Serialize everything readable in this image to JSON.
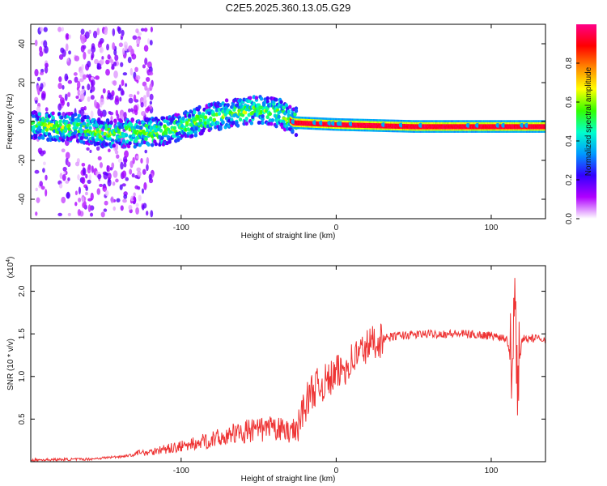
{
  "chart_data": [
    {
      "type": "heatmap",
      "title": "C2E5.2025.360.13.05.G29",
      "xlabel": "Height of straight line (km)",
      "ylabel": "Frequency (Hz)",
      "xlim": [
        -197,
        135
      ],
      "ylim": [
        -50,
        50
      ],
      "xticks": [
        -100,
        0,
        100
      ],
      "yticks": [
        -40,
        -20,
        0,
        20,
        40
      ],
      "colorbar": {
        "label": "Normalized spectral amplitude",
        "ticks": [
          "0.0",
          "0.2",
          "0.4",
          "0.6",
          "0.8"
        ],
        "tick_values": [
          0.0,
          0.2,
          0.4,
          0.6,
          0.8
        ],
        "range": [
          0,
          1
        ],
        "colormap": [
          "#ffffff",
          "#b000ff",
          "#3300ff",
          "#0099ff",
          "#00ffcc",
          "#33ff00",
          "#ffff00",
          "#ff8800",
          "#ff0000",
          "#ff0088"
        ]
      },
      "ridge": {
        "x": [
          -197,
          -170,
          -150,
          -130,
          -110,
          -90,
          -70,
          -50,
          -35,
          -28,
          0,
          50,
          100,
          135
        ],
        "freq": [
          -2,
          -3,
          -6,
          -6,
          -5,
          0,
          4,
          6,
          4,
          0,
          -1,
          -2,
          -2,
          -2
        ]
      }
    },
    {
      "type": "line",
      "xlabel": "Height of straight line (km)",
      "ylabel": "SNR (10 * v/v)",
      "yscale_label": "(x10",
      "yscale_exp": "4",
      "xlim": [
        -197,
        135
      ],
      "ylim": [
        0,
        2.3
      ],
      "xticks": [
        -100,
        0,
        100
      ],
      "yticks": [
        0.5,
        1.0,
        1.5,
        2.0
      ],
      "ytick_labels": [
        "0.5",
        "1.0",
        "1.5",
        "2.0"
      ],
      "color": "#ee3333",
      "series": [
        {
          "name": "SNR",
          "x": [
            -197,
            -160,
            -140,
            -120,
            -100,
            -80,
            -60,
            -40,
            -30,
            -25,
            -22,
            -15,
            -5,
            5,
            15,
            25,
            40,
            60,
            80,
            100,
            110,
            113,
            115,
            117,
            120,
            135
          ],
          "values": [
            0.02,
            0.03,
            0.06,
            0.1,
            0.15,
            0.22,
            0.3,
            0.33,
            0.3,
            0.35,
            0.6,
            0.85,
            0.95,
            1.1,
            1.28,
            1.42,
            1.48,
            1.5,
            1.5,
            1.48,
            1.45,
            1.2,
            2.05,
            0.95,
            1.45,
            1.44
          ]
        }
      ]
    }
  ]
}
